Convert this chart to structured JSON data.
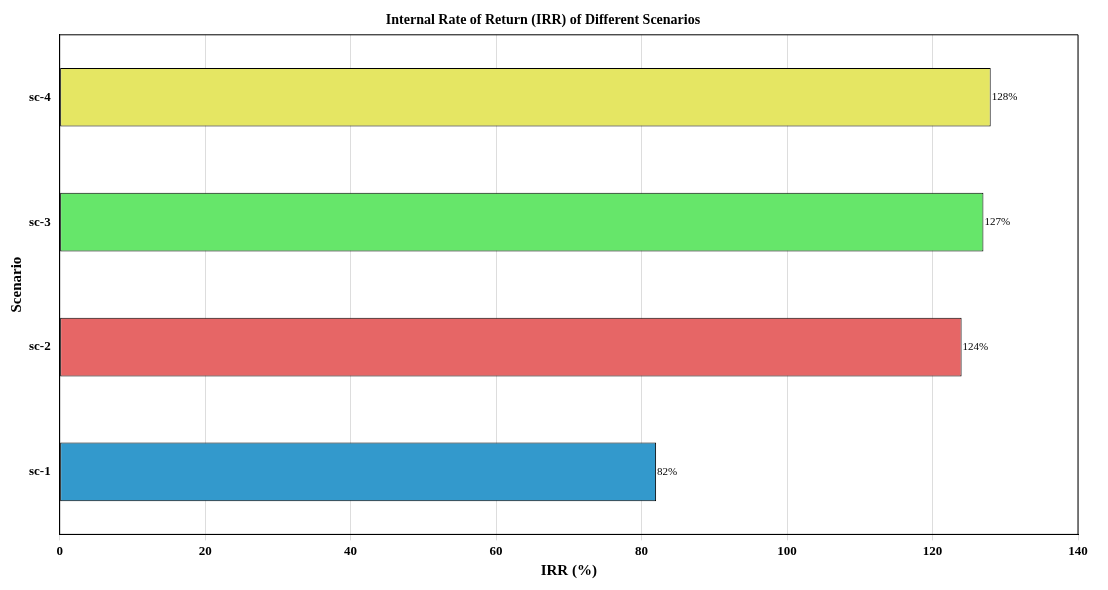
{
  "chart_data": {
    "type": "bar",
    "orientation": "horizontal",
    "title": "Internal Rate of Return (IRR) of Different Scenarios",
    "xlabel": "IRR (%)",
    "ylabel": "Scenario",
    "categories": [
      "sc-4",
      "sc-3",
      "sc-2",
      "sc-1"
    ],
    "values": [
      128,
      127,
      124,
      82
    ],
    "colors": [
      "#e5e663",
      "#66e66a",
      "#e66666",
      "#3399cc"
    ],
    "value_labels": [
      "128%",
      "127%",
      "124%",
      "82%"
    ],
    "xlim": [
      0,
      140
    ],
    "xticks": [
      0,
      20,
      40,
      60,
      80,
      100,
      120,
      140
    ],
    "grid": "x",
    "legend": false
  }
}
